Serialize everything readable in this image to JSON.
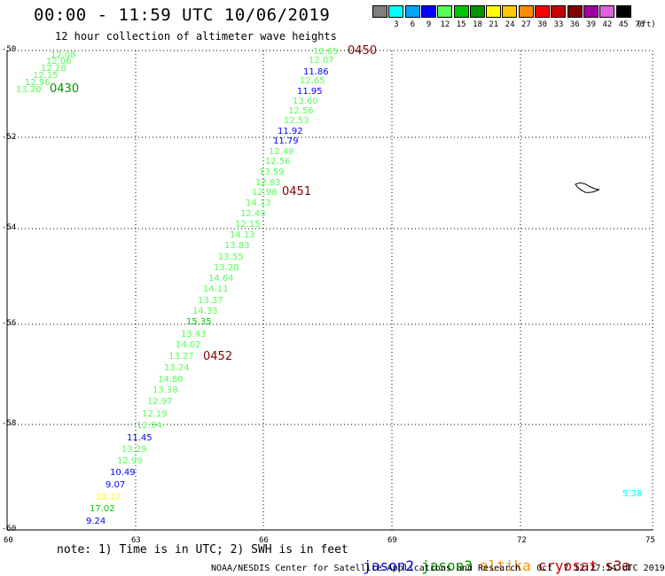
{
  "title": "00:00 - 11:59 UTC 10/06/2019",
  "subtitle": "12 hour collection of altimeter wave heights",
  "legend": {
    "unit": "(ft)",
    "bins": [
      {
        "label": "3",
        "color": "#7f7f7f"
      },
      {
        "label": "6",
        "color": "#00ffff"
      },
      {
        "label": "9",
        "color": "#00a5ff"
      },
      {
        "label": "12",
        "color": "#0000ff"
      },
      {
        "label": "15",
        "color": "#55ff55"
      },
      {
        "label": "18",
        "color": "#00c800"
      },
      {
        "label": "21",
        "color": "#009600"
      },
      {
        "label": "24",
        "color": "#ffff00"
      },
      {
        "label": "27",
        "color": "#ffc800"
      },
      {
        "label": "30",
        "color": "#ff8c00"
      },
      {
        "label": "33",
        "color": "#ff0000"
      },
      {
        "label": "36",
        "color": "#c80000"
      },
      {
        "label": "39",
        "color": "#820000"
      },
      {
        "label": "42",
        "color": "#a000a0"
      },
      {
        "label": "45",
        "color": "#dc64dc"
      },
      {
        "label": "70",
        "color": "#000000"
      }
    ]
  },
  "axes": {
    "lon_ticks": [
      "60",
      "63",
      "66",
      "69",
      "72",
      "75"
    ],
    "lat_ticks": [
      "-50",
      "-52",
      "-54",
      "-56",
      "-58",
      "-60"
    ]
  },
  "observations": [
    {
      "value": "12.08",
      "color": "#55ff55"
    },
    {
      "value": "12.06",
      "color": "#55ff55"
    },
    {
      "value": "12.28",
      "color": "#55ff55"
    },
    {
      "value": "12.15",
      "color": "#55ff55"
    },
    {
      "value": "12.96",
      "color": "#55ff55"
    },
    {
      "value": "13.20",
      "color": "#55ff55"
    },
    {
      "value": "12.65",
      "color": "#55ff55"
    },
    {
      "value": "12.07",
      "color": "#55ff55"
    },
    {
      "value": "11.86",
      "color": "#0000ff"
    },
    {
      "value": "12.65",
      "color": "#55ff55"
    },
    {
      "value": "11.95",
      "color": "#0000ff"
    },
    {
      "value": "13.60",
      "color": "#55ff55"
    },
    {
      "value": "12.56",
      "color": "#55ff55"
    },
    {
      "value": "12.53",
      "color": "#55ff55"
    },
    {
      "value": "11.92",
      "color": "#0000ff"
    },
    {
      "value": "11.79",
      "color": "#0000ff"
    },
    {
      "value": "12.48",
      "color": "#55ff55"
    },
    {
      "value": "12.56",
      "color": "#55ff55"
    },
    {
      "value": "13.59",
      "color": "#55ff55"
    },
    {
      "value": "12.83",
      "color": "#55ff55"
    },
    {
      "value": "12.98",
      "color": "#55ff55"
    },
    {
      "value": "14.13",
      "color": "#55ff55"
    },
    {
      "value": "12.43",
      "color": "#55ff55"
    },
    {
      "value": "12.15",
      "color": "#55ff55"
    },
    {
      "value": "14.13",
      "color": "#55ff55"
    },
    {
      "value": "13.83",
      "color": "#55ff55"
    },
    {
      "value": "13.55",
      "color": "#55ff55"
    },
    {
      "value": "13.28",
      "color": "#55ff55"
    },
    {
      "value": "14.64",
      "color": "#55ff55"
    },
    {
      "value": "14.11",
      "color": "#55ff55"
    },
    {
      "value": "13.37",
      "color": "#55ff55"
    },
    {
      "value": "14.33",
      "color": "#55ff55"
    },
    {
      "value": "15.35",
      "color": "#00c800"
    },
    {
      "value": "13.43",
      "color": "#55ff55"
    },
    {
      "value": "14.02",
      "color": "#55ff55"
    },
    {
      "value": "13.27",
      "color": "#55ff55"
    },
    {
      "value": "13.24",
      "color": "#55ff55"
    },
    {
      "value": "14.80",
      "color": "#55ff55"
    },
    {
      "value": "13.38",
      "color": "#55ff55"
    },
    {
      "value": "12.97",
      "color": "#55ff55"
    },
    {
      "value": "12.19",
      "color": "#55ff55"
    },
    {
      "value": "12.94",
      "color": "#55ff55"
    },
    {
      "value": "11.45",
      "color": "#0000ff"
    },
    {
      "value": "13.29",
      "color": "#55ff55"
    },
    {
      "value": "12.99",
      "color": "#55ff55"
    },
    {
      "value": "10.49",
      "color": "#0000ff"
    },
    {
      "value": "9.07",
      "color": "#0000ff"
    },
    {
      "value": "23.72",
      "color": "#ffff00"
    },
    {
      "value": "17.02",
      "color": "#00c800"
    },
    {
      "value": "9.24",
      "color": "#0000ff"
    },
    {
      "value": "5.38",
      "color": "#00ffff"
    }
  ],
  "time_labels": [
    {
      "value": "0430",
      "color": "#009600"
    },
    {
      "value": "0450",
      "color": "#820000"
    },
    {
      "value": "0451",
      "color": "#820000"
    },
    {
      "value": "0452",
      "color": "#820000"
    }
  ],
  "notes": "note: 1) Time is in UTC; 2) SWH is in feet",
  "satellites": [
    {
      "name": "jason2",
      "color": "#0000ff"
    },
    {
      "name": "jason3",
      "color": "#009600"
    },
    {
      "name": "altika",
      "color": "#ff8c00"
    },
    {
      "name": "cryosat",
      "color": "#c80000"
    },
    {
      "name": "s3a",
      "color": "#820000"
    }
  ],
  "credit": "NOAA/NESDIS Center for Satellite Applications and Research   Oct  7 12:27:14 UTC 2019"
}
